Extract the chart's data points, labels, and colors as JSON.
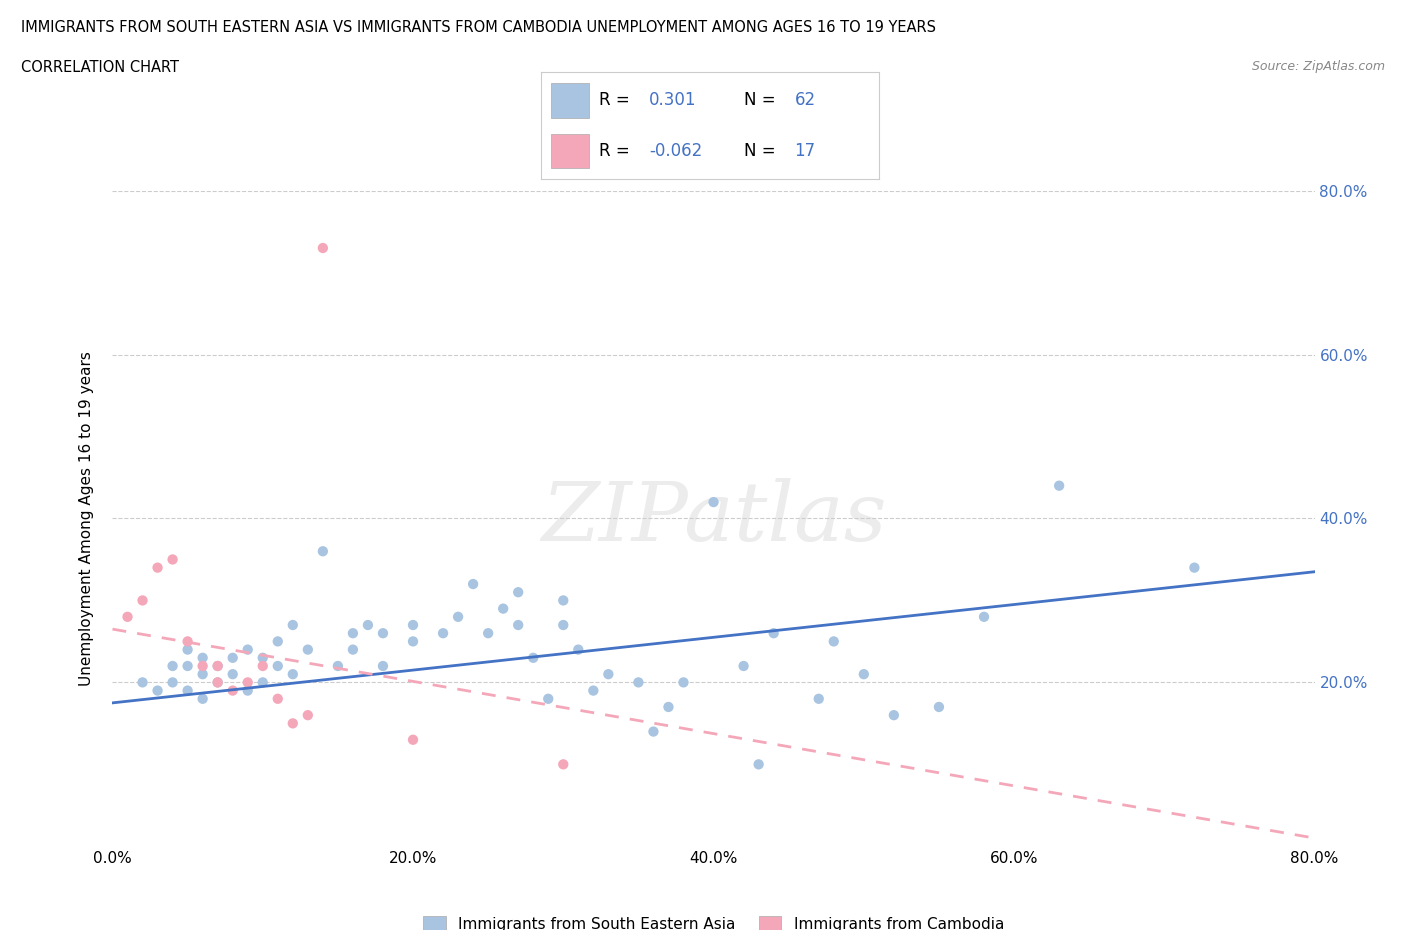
{
  "title_line1": "IMMIGRANTS FROM SOUTH EASTERN ASIA VS IMMIGRANTS FROM CAMBODIA UNEMPLOYMENT AMONG AGES 16 TO 19 YEARS",
  "title_line2": "CORRELATION CHART",
  "source_text": "Source: ZipAtlas.com",
  "ylabel": "Unemployment Among Ages 16 to 19 years",
  "xlim": [
    0.0,
    0.8
  ],
  "ylim": [
    0.0,
    0.8
  ],
  "xtick_labels": [
    "0.0%",
    "20.0%",
    "40.0%",
    "60.0%",
    "80.0%"
  ],
  "xtick_vals": [
    0.0,
    0.2,
    0.4,
    0.6,
    0.8
  ],
  "ytick_labels": [
    "20.0%",
    "40.0%",
    "60.0%",
    "80.0%"
  ],
  "ytick_vals": [
    0.2,
    0.4,
    0.6,
    0.8
  ],
  "blue_color": "#a8c4e0",
  "pink_color": "#f4a7b9",
  "blue_line_color": "#4472c4",
  "r_blue": "0.301",
  "n_blue": "62",
  "r_pink": "-0.062",
  "n_pink": "17",
  "legend_label_blue": "Immigrants from South Eastern Asia",
  "legend_label_pink": "Immigrants from Cambodia",
  "blue_scatter_x": [
    0.02,
    0.03,
    0.04,
    0.04,
    0.05,
    0.05,
    0.05,
    0.06,
    0.06,
    0.06,
    0.07,
    0.07,
    0.08,
    0.08,
    0.09,
    0.09,
    0.1,
    0.1,
    0.11,
    0.11,
    0.12,
    0.12,
    0.13,
    0.14,
    0.15,
    0.16,
    0.16,
    0.17,
    0.18,
    0.18,
    0.2,
    0.2,
    0.22,
    0.23,
    0.24,
    0.25,
    0.26,
    0.27,
    0.27,
    0.28,
    0.29,
    0.3,
    0.3,
    0.31,
    0.32,
    0.33,
    0.35,
    0.36,
    0.37,
    0.38,
    0.4,
    0.42,
    0.43,
    0.44,
    0.47,
    0.48,
    0.5,
    0.52,
    0.55,
    0.58,
    0.63,
    0.72
  ],
  "blue_scatter_y": [
    0.2,
    0.19,
    0.22,
    0.2,
    0.19,
    0.22,
    0.24,
    0.18,
    0.21,
    0.23,
    0.2,
    0.22,
    0.21,
    0.23,
    0.19,
    0.24,
    0.2,
    0.23,
    0.22,
    0.25,
    0.21,
    0.27,
    0.24,
    0.36,
    0.22,
    0.24,
    0.26,
    0.27,
    0.22,
    0.26,
    0.25,
    0.27,
    0.26,
    0.28,
    0.32,
    0.26,
    0.29,
    0.27,
    0.31,
    0.23,
    0.18,
    0.27,
    0.3,
    0.24,
    0.19,
    0.21,
    0.2,
    0.14,
    0.17,
    0.2,
    0.42,
    0.22,
    0.1,
    0.26,
    0.18,
    0.25,
    0.21,
    0.16,
    0.17,
    0.28,
    0.44,
    0.34
  ],
  "pink_scatter_x": [
    0.01,
    0.02,
    0.03,
    0.04,
    0.05,
    0.06,
    0.07,
    0.07,
    0.08,
    0.09,
    0.1,
    0.11,
    0.12,
    0.13,
    0.14,
    0.2,
    0.3
  ],
  "pink_scatter_y": [
    0.28,
    0.3,
    0.34,
    0.35,
    0.25,
    0.22,
    0.2,
    0.22,
    0.19,
    0.2,
    0.22,
    0.18,
    0.15,
    0.16,
    0.73,
    0.13,
    0.1
  ],
  "blue_trend_x": [
    0.0,
    0.8
  ],
  "blue_trend_y": [
    0.175,
    0.335
  ],
  "pink_trend_x": [
    0.0,
    0.8
  ],
  "pink_trend_y": [
    0.265,
    0.01
  ]
}
